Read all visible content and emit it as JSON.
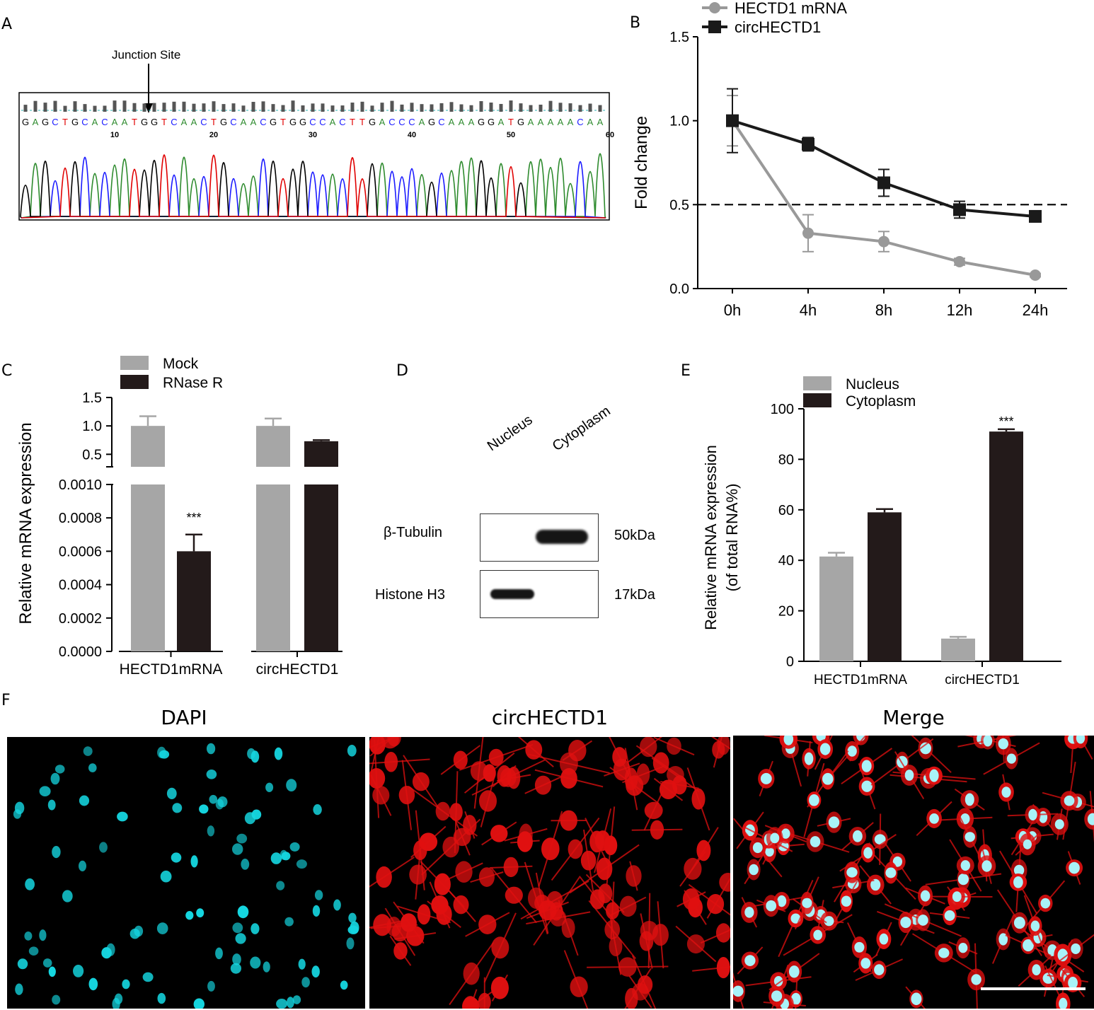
{
  "panels": {
    "A": "A",
    "B": "B",
    "C": "C",
    "D": "D",
    "E": "E",
    "F": "F"
  },
  "panelA": {
    "junction_label": "Junction Site",
    "sequence": "GAGCTGCACAATGGTCAACTGCAACGTGGCCACTTGACCCAGCAAAGGATGAAAAACAA",
    "position_ticks": [
      "10",
      "20",
      "30",
      "40",
      "50",
      "60"
    ],
    "base_colors": {
      "A": "#2e8b2e",
      "C": "#1a1aff",
      "G": "#000000",
      "T": "#e00000"
    }
  },
  "chart_data": [
    {
      "panel": "B",
      "type": "line",
      "categories": [
        "0h",
        "4h",
        "8h",
        "12h",
        "24h"
      ],
      "ylabel": "Fold change",
      "ylim": [
        0,
        1.5
      ],
      "yticks": [
        "0.0",
        "0.5",
        "1.0",
        "1.5"
      ],
      "reference_line": 0.5,
      "legend_position": "top-left",
      "series": [
        {
          "name": "HECTD1 mRNA",
          "color": "#999999",
          "marker": "circle",
          "values": [
            1.0,
            0.33,
            0.28,
            0.16,
            0.08
          ],
          "errors": [
            0.15,
            0.11,
            0.06,
            0.02,
            0.01
          ]
        },
        {
          "name": "circHECTD1",
          "color": "#1a1a1a",
          "marker": "square",
          "values": [
            1.0,
            0.86,
            0.63,
            0.47,
            0.43
          ],
          "errors": [
            0.19,
            0.04,
            0.08,
            0.05,
            0.02
          ]
        }
      ]
    },
    {
      "panel": "C",
      "type": "bar",
      "categories": [
        "HECTD1mRNA",
        "circHECTD1"
      ],
      "ylabel": "Relative mRNA expression",
      "axis_break": true,
      "upper_yticks": [
        "0.5",
        "1.0",
        "1.5"
      ],
      "lower_yticks": [
        "0.0000",
        "0.0002",
        "0.0004",
        "0.0006",
        "0.0008",
        "0.0010"
      ],
      "legend_position": "top-left",
      "series": [
        {
          "name": "Mock",
          "color": "#a6a6a6",
          "values": [
            1.0,
            1.0
          ],
          "errors": [
            0.17,
            0.13
          ]
        },
        {
          "name": "RNase R",
          "color": "#231a1a",
          "values": [
            0.0006,
            0.73
          ],
          "errors": [
            0.0001,
            0.02
          ]
        }
      ],
      "annotations": [
        "***"
      ]
    },
    {
      "panel": "E",
      "type": "bar",
      "categories": [
        "HECTD1mRNA",
        "circHECTD1"
      ],
      "ylabel": "Relative mRNA expression",
      "ylabel2": "(of total RNA%)",
      "ylim": [
        0,
        100
      ],
      "yticks": [
        "0",
        "20",
        "40",
        "60",
        "80",
        "100"
      ],
      "legend_position": "top-left",
      "series": [
        {
          "name": "Nucleus",
          "color": "#a6a6a6",
          "values": [
            41.5,
            9.0
          ],
          "errors": [
            1.5,
            0.7
          ]
        },
        {
          "name": "Cytoplasm",
          "color": "#231a1a",
          "values": [
            59.0,
            91.0
          ],
          "errors": [
            1.3,
            0.9
          ]
        }
      ],
      "annotations": [
        "***"
      ]
    }
  ],
  "panelD": {
    "lanes": [
      "Nucleus",
      "Cytoplasm"
    ],
    "bands": [
      {
        "protein": "β-Tubulin",
        "size": "50kDa"
      },
      {
        "protein": "Histone H3",
        "size": "17kDa"
      }
    ]
  },
  "panelF": {
    "images": [
      {
        "title": "DAPI",
        "nucleus_color": "#15d6e0"
      },
      {
        "title": "circHECTD1",
        "cell_color": "#e01010"
      },
      {
        "title": "Merge",
        "nucleus_color": "#a8f2f8",
        "cell_color": "#e01010"
      }
    ]
  }
}
